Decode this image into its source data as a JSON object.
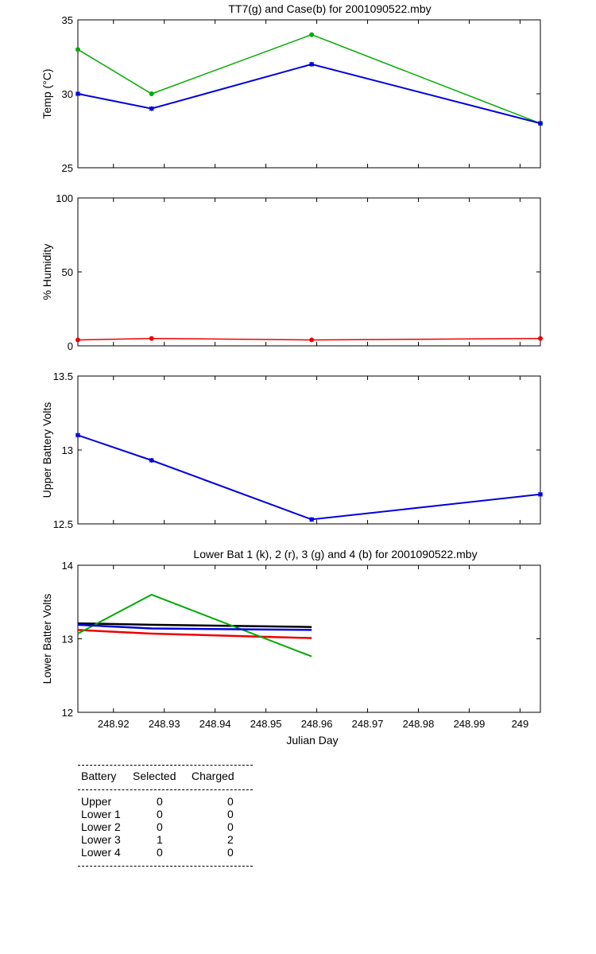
{
  "chart_data": [
    {
      "type": "line",
      "title": "TT7(g) and Case(b) for 2001090522.mby",
      "xlabel": "",
      "ylabel": "Temp (°C)",
      "ylim": [
        25,
        35
      ],
      "yticks": [
        "25",
        "30",
        "35"
      ],
      "xlim": [
        248.913,
        249.004
      ],
      "grid": false,
      "x": [
        248.913,
        248.9275,
        248.959,
        249.004
      ],
      "series": [
        {
          "color": "#00aa00",
          "marker": "dot",
          "values": [
            33,
            30,
            34,
            28
          ]
        },
        {
          "color": "#0000dd",
          "marker": "star",
          "values": [
            30,
            29,
            32,
            28
          ]
        }
      ]
    },
    {
      "type": "line",
      "title": "",
      "xlabel": "",
      "ylabel": "% Humidity",
      "ylim": [
        0,
        100
      ],
      "yticks": [
        "0",
        "50",
        "100"
      ],
      "xlim": [
        248.913,
        249.004
      ],
      "grid": false,
      "x": [
        248.913,
        248.9275,
        248.959,
        249.004
      ],
      "series": [
        {
          "color": "#ee0000",
          "marker": "dot",
          "values": [
            4,
            5,
            4,
            5
          ]
        }
      ]
    },
    {
      "type": "line",
      "title": "",
      "xlabel": "",
      "ylabel": "Upper Battery Volts",
      "ylim": [
        12.5,
        13.5
      ],
      "yticks": [
        "12.5",
        "13",
        "13.5"
      ],
      "xlim": [
        248.913,
        249.004
      ],
      "grid": false,
      "x": [
        248.913,
        248.9275,
        248.959,
        249.004
      ],
      "series": [
        {
          "color": "#0000dd",
          "marker": "star",
          "values": [
            13.1,
            12.93,
            12.53,
            12.7
          ]
        }
      ]
    },
    {
      "type": "line",
      "title": "Lower Bat 1 (k), 2 (r), 3 (g) and 4 (b) for 2001090522.mby",
      "xlabel": "Julian Day",
      "ylabel": "Lower Batter Volts",
      "ylim": [
        12,
        14
      ],
      "yticks": [
        "12",
        "13",
        "14"
      ],
      "xlim": [
        248.913,
        249.004
      ],
      "xticks": [
        "248.92",
        "248.93",
        "248.94",
        "248.95",
        "248.96",
        "248.97",
        "248.98",
        "248.99",
        "249"
      ],
      "grid": false,
      "x": [
        248.913,
        248.9275,
        248.959
      ],
      "series": [
        {
          "color": "#000000",
          "marker": "none",
          "values": [
            13.21,
            13.19,
            13.16
          ]
        },
        {
          "color": "#ee0000",
          "marker": "none",
          "values": [
            13.12,
            13.07,
            13.01
          ]
        },
        {
          "color": "#00aa00",
          "marker": "none",
          "values": [
            13.07,
            13.6,
            12.76
          ]
        },
        {
          "color": "#0000dd",
          "marker": "none",
          "values": [
            13.19,
            13.14,
            13.12
          ]
        }
      ]
    }
  ],
  "table": {
    "headers": [
      "Battery",
      "Selected",
      "Charged"
    ],
    "rows": [
      [
        "Upper",
        "0",
        "0"
      ],
      [
        "Lower 1",
        "0",
        "0"
      ],
      [
        "Lower 2",
        "0",
        "0"
      ],
      [
        "Lower 3",
        "1",
        "2"
      ],
      [
        "Lower 4",
        "0",
        "0"
      ]
    ]
  }
}
